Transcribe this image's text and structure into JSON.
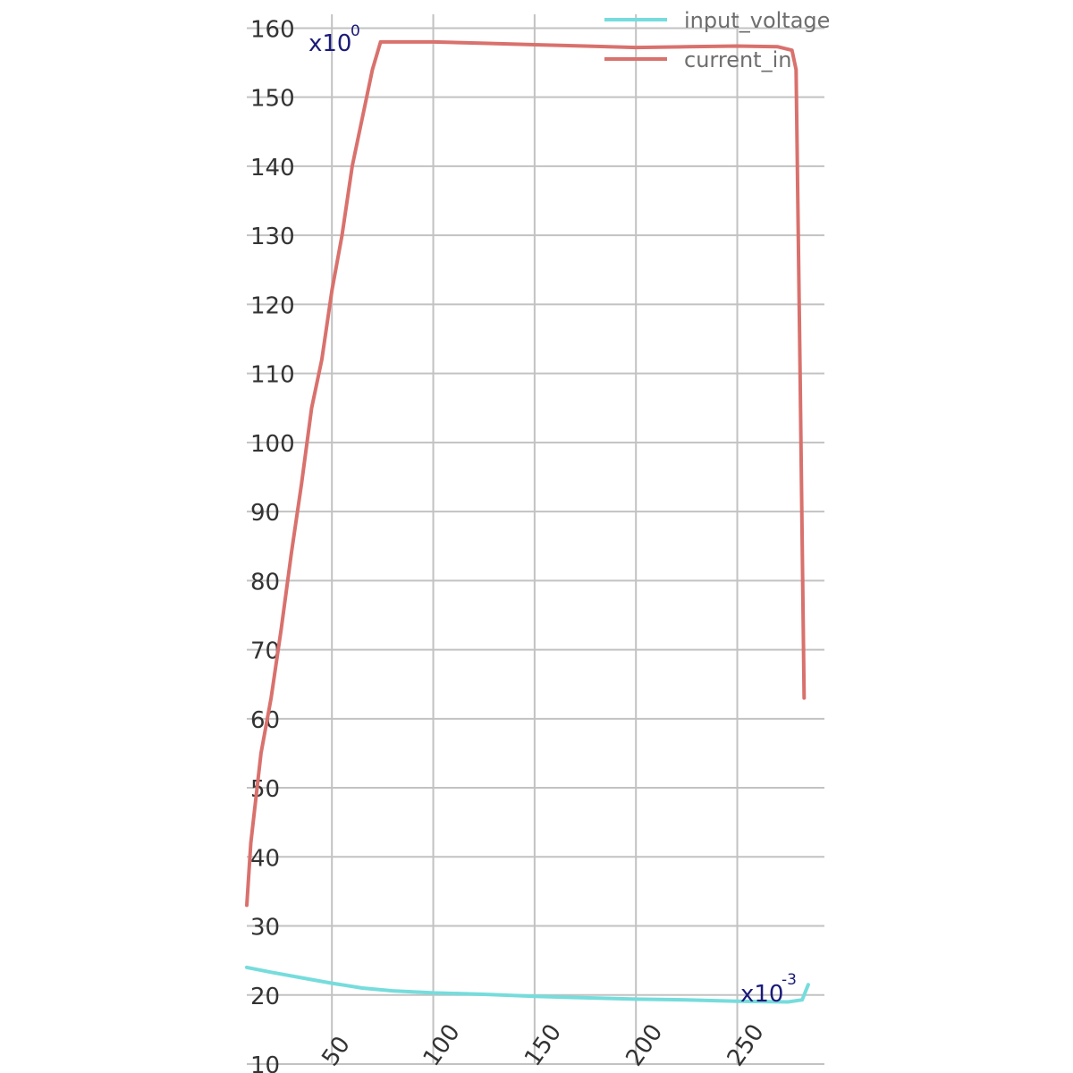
{
  "chart_data": {
    "type": "line",
    "title": "",
    "xlabel": "",
    "ylabel": "",
    "x_multiplier": "x10",
    "x_multiplier_exp": "-3",
    "y_multiplier": "x10",
    "y_multiplier_exp": "0",
    "xlim": [
      8,
      293
    ],
    "ylim": [
      10,
      162
    ],
    "x_ticks": [
      50,
      100,
      150,
      200,
      250
    ],
    "x_tick_labels": [
      "50",
      "100",
      "150",
      "200",
      "250"
    ],
    "y_ticks": [
      10,
      20,
      30,
      40,
      50,
      60,
      70,
      80,
      90,
      100,
      110,
      120,
      130,
      140,
      150,
      160
    ],
    "y_tick_labels": [
      "10",
      "20",
      "30",
      "40",
      "50",
      "60",
      "70",
      "80",
      "90",
      "100",
      "110",
      "120",
      "130",
      "140",
      "150",
      "160"
    ],
    "grid": true,
    "legend_position": "top-right",
    "series": [
      {
        "name": "input_voltage",
        "color": "#76dcdc",
        "points": [
          [
            8,
            24.0
          ],
          [
            20,
            23.3
          ],
          [
            35,
            22.5
          ],
          [
            50,
            21.7
          ],
          [
            65,
            21.0
          ],
          [
            80,
            20.6
          ],
          [
            100,
            20.3
          ],
          [
            125,
            20.1
          ],
          [
            150,
            19.8
          ],
          [
            175,
            19.6
          ],
          [
            200,
            19.4
          ],
          [
            225,
            19.3
          ],
          [
            250,
            19.1
          ],
          [
            275,
            19.0
          ],
          [
            282,
            19.3
          ],
          [
            285,
            21.5
          ]
        ]
      },
      {
        "name": "current_in",
        "color": "#d9716d",
        "points": [
          [
            8,
            33
          ],
          [
            10,
            42
          ],
          [
            15,
            55
          ],
          [
            20,
            63
          ],
          [
            25,
            73
          ],
          [
            30,
            84
          ],
          [
            35,
            94
          ],
          [
            40,
            105
          ],
          [
            45,
            112
          ],
          [
            50,
            122
          ],
          [
            55,
            130
          ],
          [
            60,
            140
          ],
          [
            65,
            147
          ],
          [
            70,
            154
          ],
          [
            74,
            158
          ],
          [
            80,
            158
          ],
          [
            100,
            158
          ],
          [
            125,
            157.8
          ],
          [
            150,
            157.6
          ],
          [
            175,
            157.4
          ],
          [
            200,
            157.2
          ],
          [
            225,
            157.3
          ],
          [
            250,
            157.4
          ],
          [
            270,
            157.3
          ],
          [
            277,
            156.8
          ],
          [
            279,
            154
          ],
          [
            281,
            110
          ],
          [
            283,
            63
          ]
        ]
      }
    ]
  },
  "legend": {
    "items": [
      {
        "label": "input_voltage",
        "color": "#76dcdc"
      },
      {
        "label": "current_in",
        "color": "#d9716d"
      }
    ]
  }
}
